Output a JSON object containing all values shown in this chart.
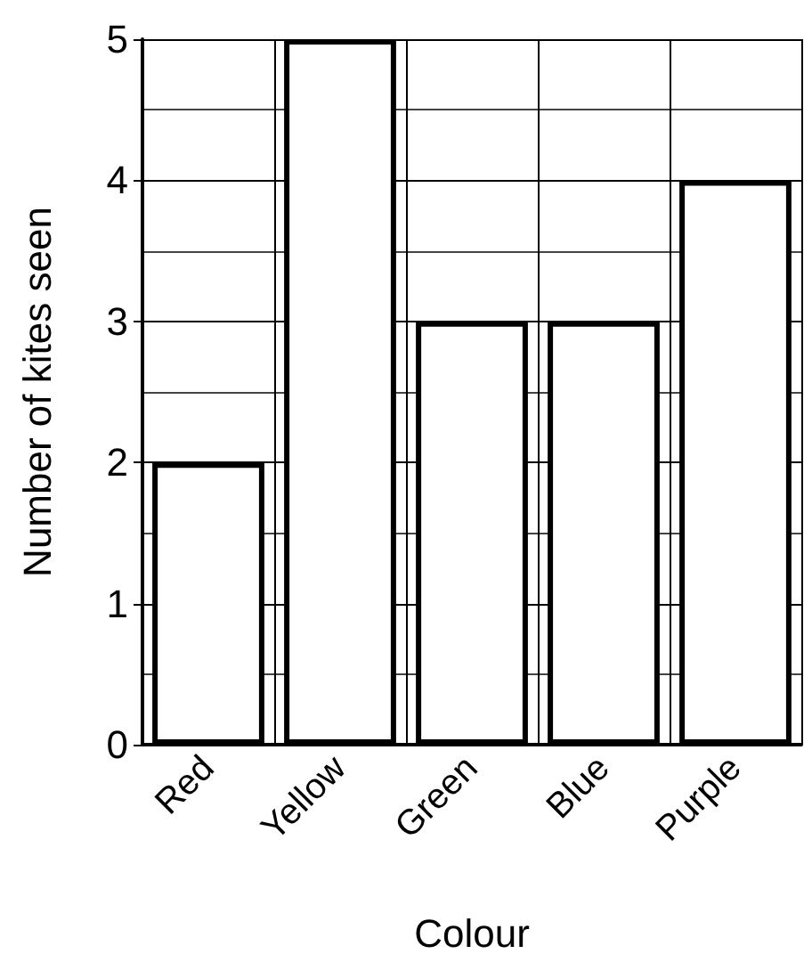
{
  "chart_data": {
    "type": "bar",
    "xlabel": "Colour",
    "ylabel": "Number of kites seen",
    "categories": [
      "Red",
      "Yellow",
      "Green",
      "Blue",
      "Purple"
    ],
    "values": [
      2,
      5,
      3,
      3,
      4
    ],
    "color": "#ffffff",
    "ylim": [
      0,
      5
    ],
    "yticks": [
      0,
      1,
      2,
      3,
      4,
      5
    ],
    "grid": true
  }
}
